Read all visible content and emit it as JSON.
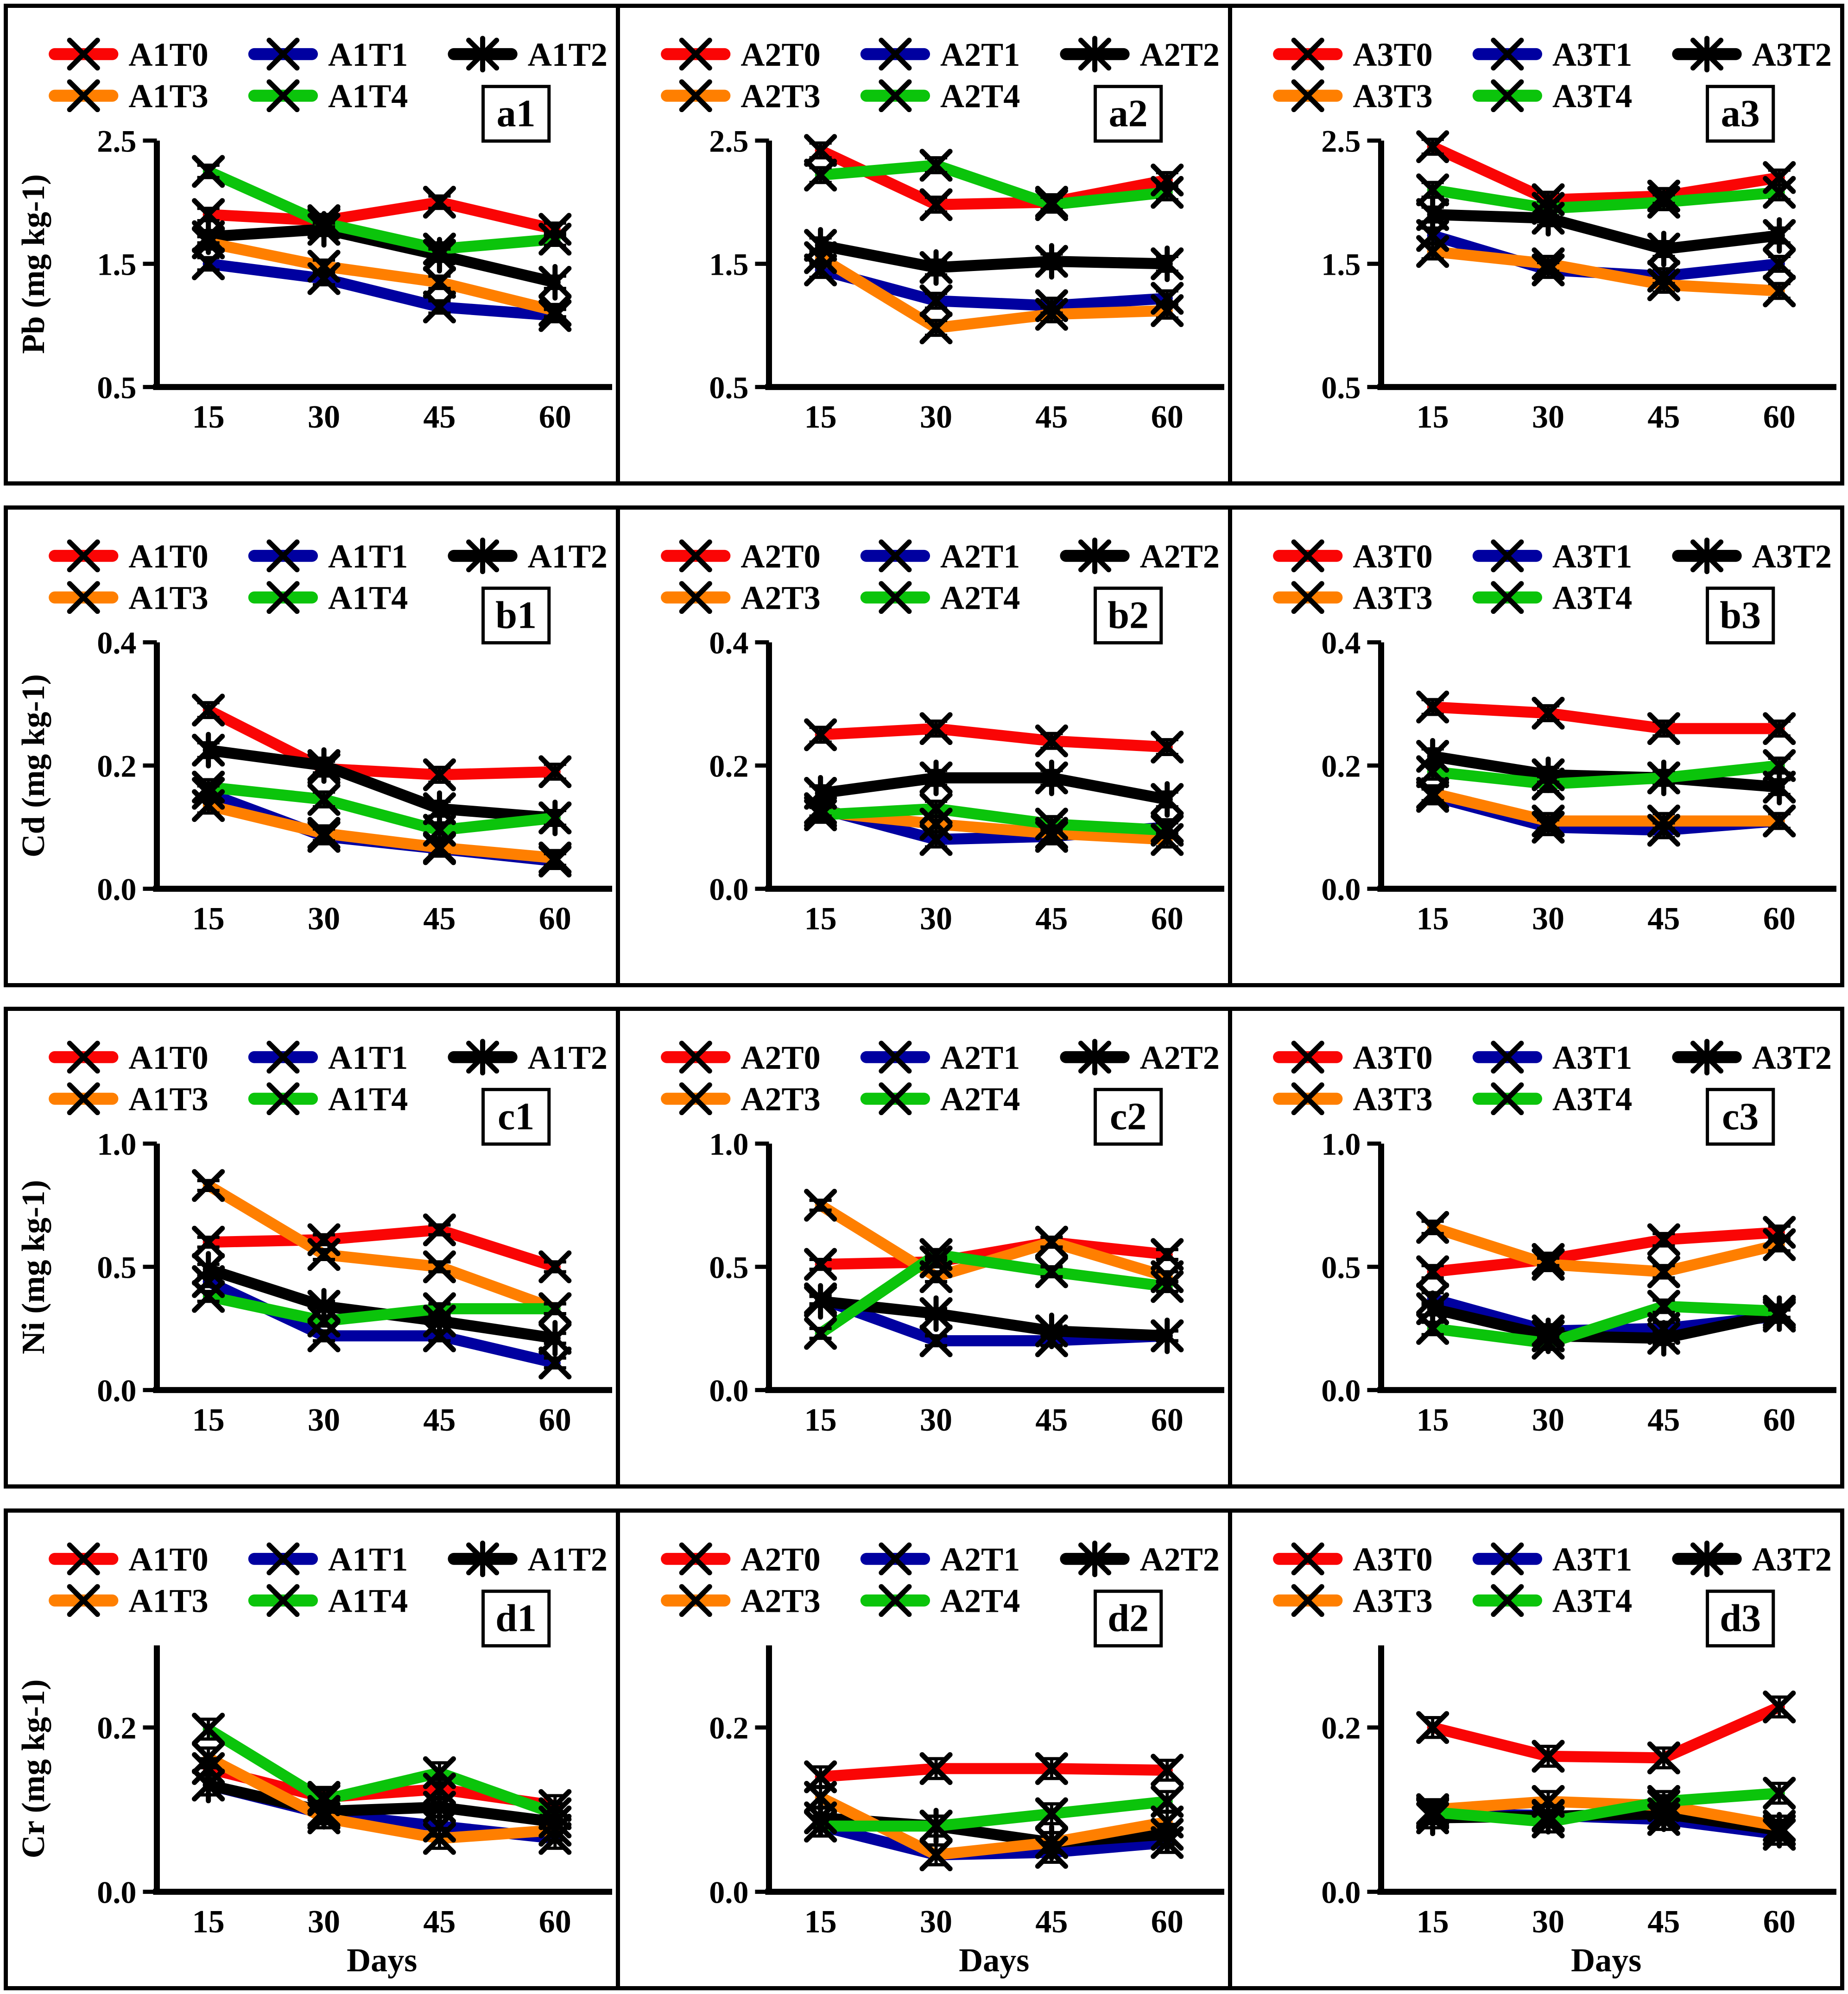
{
  "figure": {
    "x_axis_label": "Days",
    "x_values": [
      15,
      30,
      45,
      60
    ],
    "treatment_colors": {
      "T0": "#FA0505",
      "T1": "#0000A0",
      "T2": "#000000",
      "T3": "#FF7F00",
      "T4": "#0BC40B"
    },
    "panel_labels": [
      "a1",
      "a2",
      "a3",
      "b1",
      "b2",
      "b3",
      "c1",
      "c2",
      "c3",
      "d1",
      "d2",
      "d3"
    ]
  },
  "chart_data": [
    {
      "panel_label": "a1",
      "type": "line",
      "x": [
        15,
        30,
        45,
        60
      ],
      "ylabel": "Pb (mg kg-1)",
      "ylim": [
        0.5,
        2.5
      ],
      "yticks": [
        2.5,
        1.5,
        0.5
      ],
      "err": 0.05,
      "legend_position": "top",
      "grid": false,
      "series": [
        {
          "name": "A1T0",
          "color": "#FA0505",
          "marker": "x",
          "values": [
            1.9,
            1.85,
            2.0,
            1.78
          ]
        },
        {
          "name": "A1T1",
          "color": "#0000A0",
          "marker": "x",
          "values": [
            1.5,
            1.38,
            1.15,
            1.08
          ]
        },
        {
          "name": "A1T2",
          "color": "#000000",
          "marker": "star",
          "values": [
            1.72,
            1.78,
            1.57,
            1.35
          ]
        },
        {
          "name": "A1T3",
          "color": "#FF7F00",
          "marker": "x",
          "values": [
            1.67,
            1.48,
            1.35,
            1.12
          ]
        },
        {
          "name": "A1T4",
          "color": "#0BC40B",
          "marker": "x",
          "values": [
            2.25,
            1.83,
            1.62,
            1.7
          ]
        }
      ]
    },
    {
      "panel_label": "a2",
      "type": "line",
      "x": [
        15,
        30,
        45,
        60
      ],
      "ylim": [
        0.5,
        2.5
      ],
      "yticks": [
        2.5,
        1.5,
        0.5
      ],
      "err": 0.06,
      "legend_position": "top",
      "grid": false,
      "series": [
        {
          "name": "A2T0",
          "color": "#FA0505",
          "marker": "x",
          "values": [
            2.42,
            1.98,
            2.0,
            2.18
          ]
        },
        {
          "name": "A2T1",
          "color": "#0000A0",
          "marker": "x",
          "values": [
            1.45,
            1.2,
            1.16,
            1.22
          ]
        },
        {
          "name": "A2T2",
          "color": "#000000",
          "marker": "star",
          "values": [
            1.65,
            1.47,
            1.52,
            1.5
          ]
        },
        {
          "name": "A2T3",
          "color": "#FF7F00",
          "marker": "x",
          "values": [
            1.55,
            0.98,
            1.09,
            1.12
          ]
        },
        {
          "name": "A2T4",
          "color": "#0BC40B",
          "marker": "x",
          "values": [
            2.22,
            2.3,
            1.98,
            2.08
          ]
        }
      ]
    },
    {
      "panel_label": "a3",
      "type": "line",
      "x": [
        15,
        30,
        45,
        60
      ],
      "ylim": [
        0.5,
        2.5
      ],
      "yticks": [
        2.5,
        1.5,
        0.5
      ],
      "err": 0.06,
      "legend_position": "top",
      "grid": false,
      "series": [
        {
          "name": "A3T0",
          "color": "#FA0505",
          "marker": "x",
          "values": [
            2.45,
            2.02,
            2.05,
            2.2
          ]
        },
        {
          "name": "A3T1",
          "color": "#0000A0",
          "marker": "x",
          "values": [
            1.73,
            1.45,
            1.4,
            1.5
          ]
        },
        {
          "name": "A3T2",
          "color": "#000000",
          "marker": "star",
          "values": [
            1.9,
            1.87,
            1.62,
            1.73
          ]
        },
        {
          "name": "A3T3",
          "color": "#FF7F00",
          "marker": "x",
          "values": [
            1.6,
            1.5,
            1.33,
            1.28
          ]
        },
        {
          "name": "A3T4",
          "color": "#0BC40B",
          "marker": "x",
          "values": [
            2.1,
            1.95,
            2.0,
            2.08
          ]
        }
      ]
    },
    {
      "panel_label": "b1",
      "type": "line",
      "x": [
        15,
        30,
        45,
        60
      ],
      "ylabel": "Cd (mg kg-1)",
      "ylim": [
        0.0,
        0.4
      ],
      "yticks": [
        0.4,
        0.2,
        0.0
      ],
      "err": 0.012,
      "legend_position": "top",
      "grid": false,
      "series": [
        {
          "name": "A1T0",
          "color": "#FA0505",
          "marker": "x",
          "values": [
            0.29,
            0.195,
            0.185,
            0.19
          ]
        },
        {
          "name": "A1T1",
          "color": "#0000A0",
          "marker": "x",
          "values": [
            0.155,
            0.085,
            0.065,
            0.045
          ]
        },
        {
          "name": "A1T2",
          "color": "#000000",
          "marker": "star",
          "values": [
            0.225,
            0.2,
            0.13,
            0.115
          ]
        },
        {
          "name": "A1T3",
          "color": "#FF7F00",
          "marker": "x",
          "values": [
            0.135,
            0.09,
            0.067,
            0.05
          ]
        },
        {
          "name": "A1T4",
          "color": "#0BC40B",
          "marker": "x",
          "values": [
            0.165,
            0.145,
            0.095,
            0.115
          ]
        }
      ]
    },
    {
      "panel_label": "b2",
      "type": "line",
      "x": [
        15,
        30,
        45,
        60
      ],
      "ylim": [
        0.0,
        0.4
      ],
      "yticks": [
        0.4,
        0.2,
        0.0
      ],
      "err": 0.012,
      "legend_position": "top",
      "grid": false,
      "series": [
        {
          "name": "A2T0",
          "color": "#FA0505",
          "marker": "x",
          "values": [
            0.25,
            0.26,
            0.24,
            0.23
          ]
        },
        {
          "name": "A2T1",
          "color": "#0000A0",
          "marker": "x",
          "values": [
            0.13,
            0.08,
            0.085,
            0.1
          ]
        },
        {
          "name": "A2T2",
          "color": "#000000",
          "marker": "star",
          "values": [
            0.155,
            0.18,
            0.18,
            0.145
          ]
        },
        {
          "name": "A2T3",
          "color": "#FF7F00",
          "marker": "x",
          "values": [
            0.125,
            0.105,
            0.09,
            0.08
          ]
        },
        {
          "name": "A2T4",
          "color": "#0BC40B",
          "marker": "x",
          "values": [
            0.12,
            0.13,
            0.105,
            0.095
          ]
        }
      ]
    },
    {
      "panel_label": "b3",
      "type": "line",
      "x": [
        15,
        30,
        45,
        60
      ],
      "ylim": [
        0.0,
        0.4
      ],
      "yticks": [
        0.4,
        0.2,
        0.0
      ],
      "err": 0.012,
      "legend_position": "top",
      "grid": false,
      "series": [
        {
          "name": "A3T0",
          "color": "#FA0505",
          "marker": "x",
          "values": [
            0.295,
            0.285,
            0.26,
            0.26
          ]
        },
        {
          "name": "A3T1",
          "color": "#0000A0",
          "marker": "x",
          "values": [
            0.15,
            0.1,
            0.095,
            0.11
          ]
        },
        {
          "name": "A3T2",
          "color": "#000000",
          "marker": "star",
          "values": [
            0.215,
            0.185,
            0.18,
            0.165
          ]
        },
        {
          "name": "A3T3",
          "color": "#FF7F00",
          "marker": "x",
          "values": [
            0.155,
            0.11,
            0.11,
            0.11
          ]
        },
        {
          "name": "A3T4",
          "color": "#0BC40B",
          "marker": "x",
          "values": [
            0.19,
            0.17,
            0.18,
            0.2
          ]
        }
      ]
    },
    {
      "panel_label": "c1",
      "type": "line",
      "x": [
        15,
        30,
        45,
        60
      ],
      "ylabel": "Ni (mg kg-1)",
      "ylim": [
        0.0,
        1.0
      ],
      "yticks": [
        1.0,
        0.5,
        0.0
      ],
      "err": 0.02,
      "legend_position": "top",
      "grid": false,
      "series": [
        {
          "name": "A1T0",
          "color": "#FA0505",
          "marker": "x",
          "values": [
            0.6,
            0.61,
            0.65,
            0.5
          ]
        },
        {
          "name": "A1T1",
          "color": "#0000A0",
          "marker": "x",
          "values": [
            0.44,
            0.22,
            0.22,
            0.11
          ]
        },
        {
          "name": "A1T2",
          "color": "#000000",
          "marker": "star",
          "values": [
            0.49,
            0.34,
            0.28,
            0.21
          ]
        },
        {
          "name": "A1T3",
          "color": "#FF7F00",
          "marker": "x",
          "values": [
            0.83,
            0.55,
            0.5,
            0.33
          ]
        },
        {
          "name": "A1T4",
          "color": "#0BC40B",
          "marker": "x",
          "values": [
            0.38,
            0.28,
            0.33,
            0.33
          ]
        }
      ]
    },
    {
      "panel_label": "c2",
      "type": "line",
      "x": [
        15,
        30,
        45,
        60
      ],
      "ylim": [
        0.0,
        1.0
      ],
      "yticks": [
        1.0,
        0.5,
        0.0
      ],
      "err": 0.02,
      "legend_position": "top",
      "grid": false,
      "series": [
        {
          "name": "A2T0",
          "color": "#FA0505",
          "marker": "x",
          "values": [
            0.51,
            0.52,
            0.6,
            0.55
          ]
        },
        {
          "name": "A2T1",
          "color": "#0000A0",
          "marker": "x",
          "values": [
            0.37,
            0.2,
            0.2,
            0.22
          ]
        },
        {
          "name": "A2T2",
          "color": "#000000",
          "marker": "star",
          "values": [
            0.36,
            0.31,
            0.24,
            0.22
          ]
        },
        {
          "name": "A2T3",
          "color": "#FF7F00",
          "marker": "x",
          "values": [
            0.75,
            0.46,
            0.6,
            0.46
          ]
        },
        {
          "name": "A2T4",
          "color": "#0BC40B",
          "marker": "x",
          "values": [
            0.23,
            0.55,
            0.48,
            0.42
          ]
        }
      ]
    },
    {
      "panel_label": "c3",
      "type": "line",
      "x": [
        15,
        30,
        45,
        60
      ],
      "ylim": [
        0.0,
        1.0
      ],
      "yticks": [
        1.0,
        0.5,
        0.0
      ],
      "err": 0.025,
      "legend_position": "top",
      "grid": false,
      "series": [
        {
          "name": "A3T0",
          "color": "#FA0505",
          "marker": "x",
          "values": [
            0.48,
            0.53,
            0.61,
            0.64
          ]
        },
        {
          "name": "A3T1",
          "color": "#0000A0",
          "marker": "x",
          "values": [
            0.37,
            0.24,
            0.25,
            0.3
          ]
        },
        {
          "name": "A3T2",
          "color": "#000000",
          "marker": "star",
          "values": [
            0.33,
            0.22,
            0.21,
            0.31
          ]
        },
        {
          "name": "A3T3",
          "color": "#FF7F00",
          "marker": "x",
          "values": [
            0.66,
            0.51,
            0.48,
            0.59
          ]
        },
        {
          "name": "A3T4",
          "color": "#0BC40B",
          "marker": "x",
          "values": [
            0.25,
            0.19,
            0.34,
            0.32
          ]
        }
      ]
    },
    {
      "panel_label": "d1",
      "type": "line",
      "x": [
        15,
        30,
        45,
        60
      ],
      "ylabel": "Cr (mg kg-1)",
      "xlabel": "Days",
      "ylim": [
        0.0,
        0.3
      ],
      "yticks": [
        0.2,
        0.0
      ],
      "err": 0.012,
      "legend_position": "top",
      "grid": false,
      "series": [
        {
          "name": "A1T0",
          "color": "#FA0505",
          "marker": "x",
          "values": [
            0.15,
            0.115,
            0.125,
            0.105
          ]
        },
        {
          "name": "A1T1",
          "color": "#0000A0",
          "marker": "x",
          "values": [
            0.13,
            0.095,
            0.08,
            0.065
          ]
        },
        {
          "name": "A1T2",
          "color": "#000000",
          "marker": "star",
          "values": [
            0.13,
            0.098,
            0.103,
            0.085
          ]
        },
        {
          "name": "A1T3",
          "color": "#FF7F00",
          "marker": "x",
          "values": [
            0.163,
            0.09,
            0.065,
            0.075
          ]
        },
        {
          "name": "A1T4",
          "color": "#0BC40B",
          "marker": "x",
          "values": [
            0.198,
            0.112,
            0.145,
            0.095
          ]
        }
      ]
    },
    {
      "panel_label": "d2",
      "type": "line",
      "x": [
        15,
        30,
        45,
        60
      ],
      "xlabel": "Days",
      "ylim": [
        0.0,
        0.3
      ],
      "yticks": [
        0.2,
        0.0
      ],
      "err": 0.012,
      "legend_position": "top",
      "grid": false,
      "series": [
        {
          "name": "A2T0",
          "color": "#FA0505",
          "marker": "x",
          "values": [
            0.14,
            0.15,
            0.15,
            0.148
          ]
        },
        {
          "name": "A2T1",
          "color": "#0000A0",
          "marker": "x",
          "values": [
            0.08,
            0.045,
            0.048,
            0.06
          ]
        },
        {
          "name": "A2T2",
          "color": "#000000",
          "marker": "star",
          "values": [
            0.09,
            0.08,
            0.06,
            0.07
          ]
        },
        {
          "name": "A2T3",
          "color": "#FF7F00",
          "marker": "x",
          "values": [
            0.115,
            0.045,
            0.06,
            0.085
          ]
        },
        {
          "name": "A2T4",
          "color": "#0BC40B",
          "marker": "x",
          "values": [
            0.08,
            0.08,
            0.095,
            0.11
          ]
        }
      ]
    },
    {
      "panel_label": "d3",
      "type": "line",
      "x": [
        15,
        30,
        45,
        60
      ],
      "xlabel": "Days",
      "ylim": [
        0.0,
        0.3
      ],
      "yticks": [
        0.2,
        0.0
      ],
      "err": 0.012,
      "legend_position": "top",
      "grid": false,
      "series": [
        {
          "name": "A3T0",
          "color": "#FA0505",
          "marker": "x",
          "values": [
            0.2,
            0.165,
            0.163,
            0.225
          ]
        },
        {
          "name": "A3T1",
          "color": "#0000A0",
          "marker": "x",
          "values": [
            0.095,
            0.093,
            0.088,
            0.07
          ]
        },
        {
          "name": "A3T2",
          "color": "#000000",
          "marker": "star",
          "values": [
            0.09,
            0.092,
            0.095,
            0.075
          ]
        },
        {
          "name": "A3T3",
          "color": "#FF7F00",
          "marker": "x",
          "values": [
            0.1,
            0.11,
            0.105,
            0.08
          ]
        },
        {
          "name": "A3T4",
          "color": "#0BC40B",
          "marker": "x",
          "values": [
            0.097,
            0.085,
            0.11,
            0.12
          ]
        }
      ]
    }
  ]
}
